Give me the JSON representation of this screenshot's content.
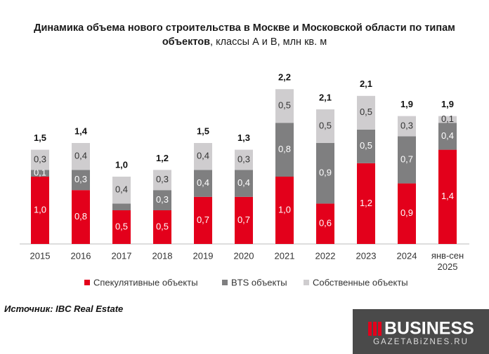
{
  "chart_data": {
    "type": "stacked_bar",
    "title": "Динамика объема нового строительства в Москве и Московской области по типам объектов",
    "subtitle": ", классы А и B, млн кв. м",
    "categories": [
      "2015",
      "2016",
      "2017",
      "2018",
      "2019",
      "2020",
      "2021",
      "2022",
      "2023",
      "2024",
      "янв-сен 2025"
    ],
    "series": [
      {
        "name": "Спекулятивные объекты",
        "color": "#e3001b",
        "label_color": "#ffffff",
        "values": [
          1.0,
          0.8,
          0.5,
          0.5,
          0.7,
          0.7,
          1.0,
          0.6,
          1.2,
          0.9,
          1.4
        ],
        "value_labels": [
          "1,0",
          "0,8",
          "0,5",
          "0,5",
          "0,7",
          "0,7",
          "1,0",
          "0,6",
          "1,2",
          "0,9",
          "1,4"
        ]
      },
      {
        "name": "BTS объекты",
        "color": "#7f7f80",
        "label_color": "#ffffff",
        "values": [
          0.1,
          0.3,
          0.1,
          0.3,
          0.4,
          0.4,
          0.8,
          0.9,
          0.5,
          0.7,
          0.4
        ],
        "value_labels": [
          "0,1",
          "0,3",
          null,
          "0,3",
          "0,4",
          "0,4",
          "0,8",
          "0,9",
          "0,5",
          "0,7",
          "0,4"
        ]
      },
      {
        "name": "Собственные объекты",
        "color": "#cfcdcf",
        "label_color": "#333333",
        "values": [
          0.3,
          0.4,
          0.4,
          0.3,
          0.4,
          0.3,
          0.5,
          0.5,
          0.5,
          0.3,
          0.1
        ],
        "value_labels": [
          "0,3",
          "0,4",
          "0,4",
          "0,3",
          "0,4",
          "0,3",
          "0,5",
          "0,5",
          "0,5",
          "0,3",
          "0,1"
        ]
      }
    ],
    "totals": {
      "values": [
        1.5,
        1.4,
        1.0,
        1.2,
        1.5,
        1.3,
        2.2,
        2.1,
        2.1,
        1.9,
        1.9
      ],
      "value_labels": [
        "1,5",
        "1,4",
        "1,0",
        "1,2",
        "1,5",
        "1,3",
        "2,2",
        "2,1",
        "2,1",
        "1,9",
        "1,9"
      ]
    },
    "source": "Источник: IBC Real Estate"
  },
  "logo": {
    "name": "BUSINESS",
    "site": "GAZETABiZNES.RU"
  }
}
